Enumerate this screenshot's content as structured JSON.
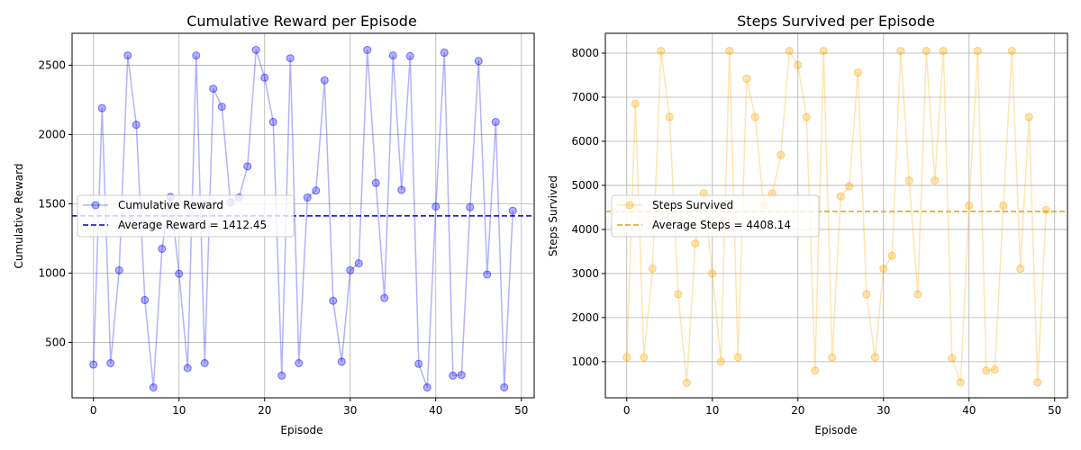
{
  "chart_data": [
    {
      "type": "line",
      "title": "Cumulative Reward per Episode",
      "xlabel": "Episode",
      "ylabel": "Cumulative Reward",
      "xlim": [
        -2.5,
        51.5
      ],
      "ylim": [
        100,
        2730
      ],
      "xticks": [
        0,
        10,
        20,
        30,
        40,
        50
      ],
      "yticks": [
        500,
        1000,
        1500,
        2000,
        2500
      ],
      "grid": true,
      "legend_position": "center-left",
      "series": [
        {
          "name": "Cumulative Reward",
          "color": "#0000ff",
          "x": [
            0,
            1,
            2,
            3,
            4,
            5,
            6,
            7,
            8,
            9,
            10,
            11,
            12,
            13,
            14,
            15,
            16,
            17,
            18,
            19,
            20,
            21,
            22,
            23,
            24,
            25,
            26,
            27,
            28,
            29,
            30,
            31,
            32,
            33,
            34,
            35,
            36,
            37,
            38,
            39,
            40,
            41,
            42,
            43,
            44,
            45,
            46,
            47,
            48,
            49
          ],
          "values": [
            340,
            2190,
            350,
            1020,
            2570,
            2070,
            805,
            175,
            1175,
            1550,
            995,
            315,
            2570,
            350,
            2330,
            2200,
            1510,
            1545,
            1770,
            2610,
            2410,
            2090,
            260,
            2550,
            350,
            1545,
            1595,
            2390,
            800,
            360,
            1020,
            1070,
            2610,
            1650,
            820,
            2570,
            1600,
            2565,
            345,
            175,
            1480,
            2590,
            260,
            265,
            1475,
            2530,
            990,
            2090,
            175,
            1450
          ]
        }
      ],
      "reference_line": {
        "label": "Average Reward = 1412.45",
        "value": 1412.45,
        "color": "#0000cc",
        "style": "dashed"
      }
    },
    {
      "type": "line",
      "title": "Steps Survived per Episode",
      "xlabel": "Episode",
      "ylabel": "Steps Survived",
      "xlim": [
        -2.5,
        51.5
      ],
      "ylim": [
        180,
        8450
      ],
      "xticks": [
        0,
        10,
        20,
        30,
        40,
        50
      ],
      "yticks": [
        1000,
        2000,
        3000,
        4000,
        5000,
        6000,
        7000,
        8000
      ],
      "grid": true,
      "legend_position": "center-left",
      "series": [
        {
          "name": "Steps Survived",
          "color": "#ffa500",
          "x": [
            0,
            1,
            2,
            3,
            4,
            5,
            6,
            7,
            8,
            9,
            10,
            11,
            12,
            13,
            14,
            15,
            16,
            17,
            18,
            19,
            20,
            21,
            22,
            23,
            24,
            25,
            26,
            27,
            28,
            29,
            30,
            31,
            32,
            33,
            34,
            35,
            36,
            37,
            38,
            39,
            40,
            41,
            42,
            43,
            44,
            45,
            46,
            47,
            48,
            49
          ],
          "values": [
            1100,
            6850,
            1100,
            3110,
            8050,
            6550,
            2530,
            520,
            3680,
            4820,
            3000,
            1000,
            8050,
            1100,
            7420,
            6550,
            4540,
            4820,
            5690,
            8050,
            7730,
            6550,
            800,
            8050,
            1100,
            4750,
            4980,
            7560,
            2530,
            1100,
            3110,
            3400,
            8050,
            5110,
            2530,
            8050,
            5110,
            8050,
            1080,
            530,
            4540,
            8050,
            800,
            820,
            4540,
            8050,
            3110,
            6550,
            530,
            4440
          ]
        }
      ],
      "reference_line": {
        "label": "Average Steps = 4408.14",
        "value": 4408.14,
        "color": "#e6a000",
        "style": "dashed"
      }
    }
  ]
}
